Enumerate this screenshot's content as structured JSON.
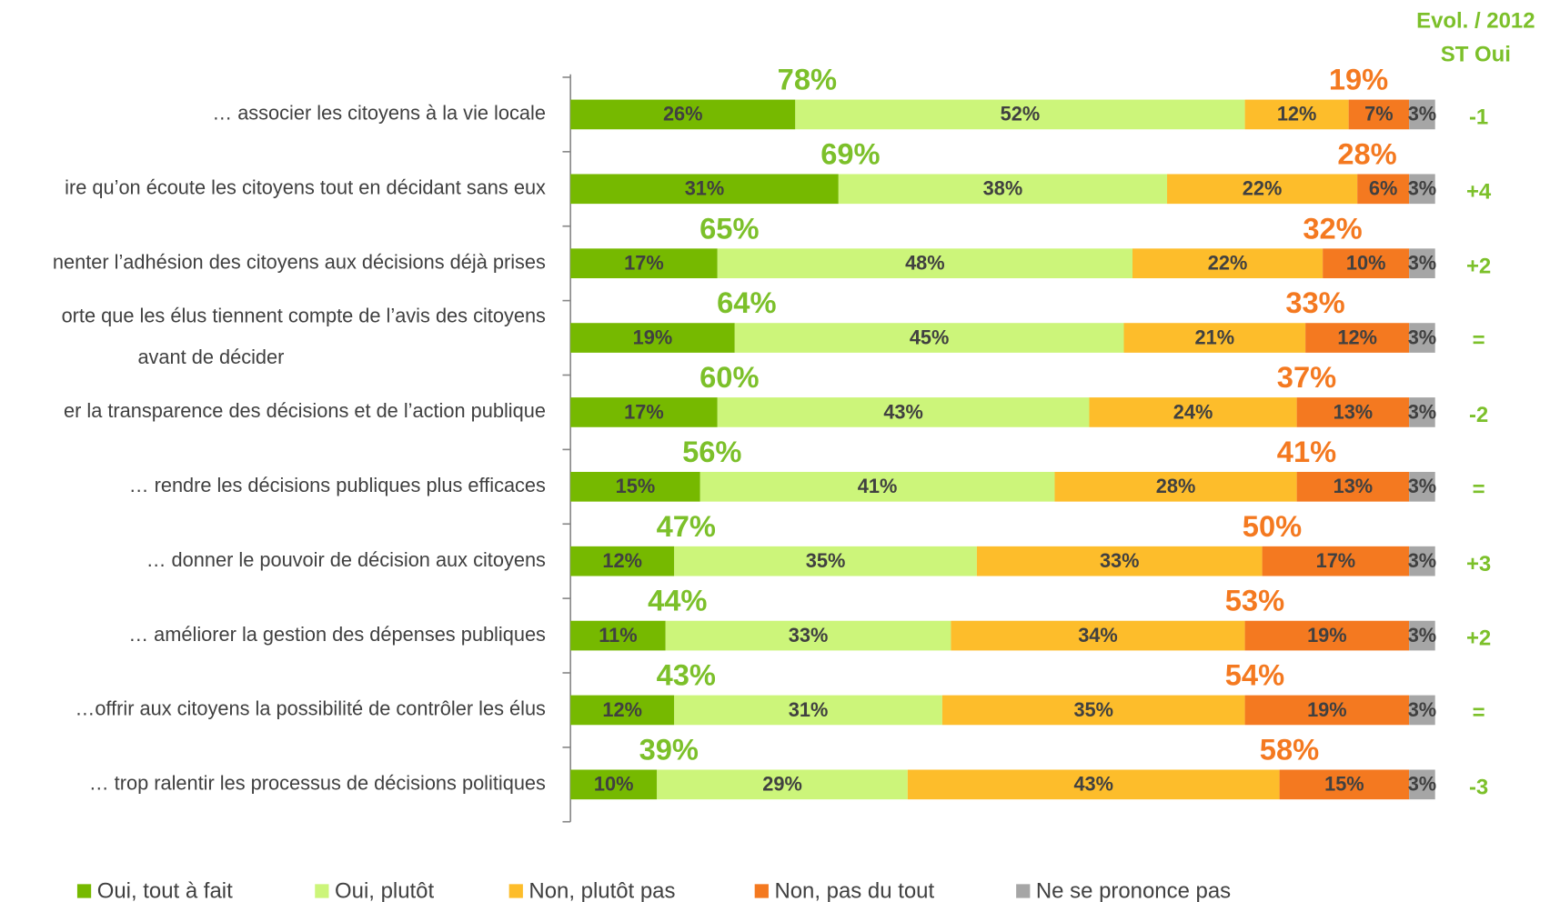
{
  "chart_data": {
    "type": "stacked-bar-horizontal",
    "header": [
      "Evol. / 2012",
      "ST Oui"
    ],
    "categories": [
      [
        "… associer les citoyens à la vie locale"
      ],
      [
        "ire qu’on écoute les citoyens tout en décidant sans eux"
      ],
      [
        "nenter l’adhésion des citoyens aux décisions déjà prises"
      ],
      [
        "orte que les élus tiennent compte de l’avis des citoyens",
        "avant de décider"
      ],
      [
        "er la transparence des décisions et de l’action publique"
      ],
      [
        "… rendre les décisions publiques plus efficaces"
      ],
      [
        "… donner le pouvoir de décision aux citoyens"
      ],
      [
        "… améliorer la gestion des dépenses publiques"
      ],
      [
        "…offrir aux citoyens la possibilité de contrôler les élus"
      ],
      [
        "… trop ralentir les processus de décisions politiques"
      ]
    ],
    "xlim": [
      0,
      100
    ],
    "series": [
      {
        "name": "Oui, tout à fait",
        "color": "#76b900",
        "values": [
          26,
          31,
          17,
          19,
          17,
          15,
          12,
          11,
          12,
          10
        ],
        "value_labels": [
          "26%",
          "31%",
          "17%",
          "19%",
          "17%",
          "15%",
          "12%",
          "11%",
          "12%",
          "10%"
        ]
      },
      {
        "name": "Oui, plutôt",
        "color": "#ccf57a",
        "values": [
          52,
          38,
          48,
          45,
          43,
          41,
          35,
          33,
          31,
          29
        ],
        "value_labels": [
          "52%",
          "38%",
          "48%",
          "45%",
          "43%",
          "41%",
          "35%",
          "33%",
          "31%",
          "29%"
        ]
      },
      {
        "name": "Non, plutôt pas",
        "color": "#fdbd2b",
        "values": [
          12,
          22,
          22,
          21,
          24,
          28,
          33,
          34,
          35,
          43
        ],
        "value_labels": [
          "12%",
          "22%",
          "22%",
          "21%",
          "24%",
          "28%",
          "33%",
          "34%",
          "35%",
          "43%"
        ]
      },
      {
        "name": "Non, pas du tout",
        "color": "#f47920",
        "values": [
          7,
          6,
          10,
          12,
          13,
          13,
          17,
          19,
          19,
          15
        ],
        "value_labels": [
          "7%",
          "6%",
          "10%",
          "12%",
          "13%",
          "13%",
          "17%",
          "19%",
          "19%",
          "15%"
        ]
      },
      {
        "name": "Ne se prononce pas",
        "color": "#a6a6a6",
        "values": [
          3,
          3,
          3,
          3,
          3,
          3,
          3,
          3,
          3,
          3
        ],
        "value_labels": [
          "3%",
          "3%",
          "3%",
          "3%",
          "3%",
          "3%",
          "3%",
          "3%",
          "3%",
          "3%"
        ]
      }
    ],
    "st_oui": {
      "color": "#7cc02a",
      "values": [
        78,
        69,
        65,
        64,
        60,
        56,
        47,
        44,
        43,
        39
      ],
      "value_labels": [
        "78%",
        "69%",
        "65%",
        "64%",
        "60%",
        "56%",
        "47%",
        "44%",
        "43%",
        "39%"
      ]
    },
    "st_non": {
      "color": "#f47920",
      "values": [
        19,
        28,
        32,
        33,
        37,
        41,
        50,
        53,
        54,
        58
      ],
      "value_labels": [
        "19%",
        "28%",
        "32%",
        "33%",
        "37%",
        "41%",
        "50%",
        "53%",
        "54%",
        "58%"
      ]
    },
    "evolution": [
      "-1",
      "+4",
      "+2",
      "=",
      "-2",
      "=",
      "+3",
      "+2",
      "=",
      "-3"
    ]
  }
}
